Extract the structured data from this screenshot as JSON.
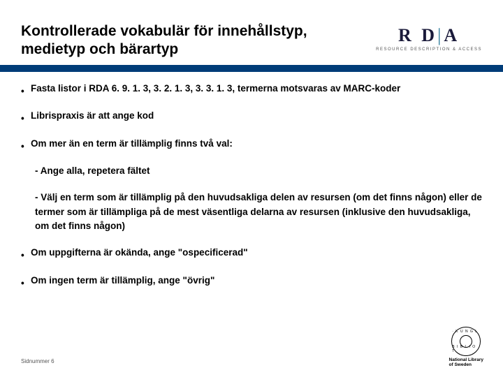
{
  "title": "Kontrollerade vokabulär för innehållstyp, medietyp och bärartyp",
  "logo": {
    "main": "R D",
    "bar": "|",
    "main2": "A",
    "tag": "RESOURCE DESCRIPTION & ACCESS"
  },
  "accent_color": "#003c78",
  "bullets": [
    "Fasta listor i RDA 6. 9. 1. 3, 3. 2. 1. 3, 3. 3. 1. 3, termerna motsvaras av MARC-koder",
    "Librispraxis är att ange kod",
    "Om mer än en term är tillämplig finns två val:"
  ],
  "subs": [
    "- Ange alla, repetera fältet",
    "- Välj en term som är tillämplig  på den huvudsakliga delen av resursen  (om det finns någon) eller de termer som är tillämpliga på de mest väsentliga delarna av resursen (inklusive den huvudsakliga, om det finns någon)"
  ],
  "bullets2": [
    "Om uppgifterna är okända, ange \"ospecificerad\"",
    "Om ingen term är tillämplig, ange \"övrig\""
  ],
  "footer": "Sidnummer 6",
  "kb": {
    "top": "· K U N G L ·",
    "bot": "B I B L I O T",
    "caption1": "National Library",
    "caption2": "of Sweden"
  }
}
